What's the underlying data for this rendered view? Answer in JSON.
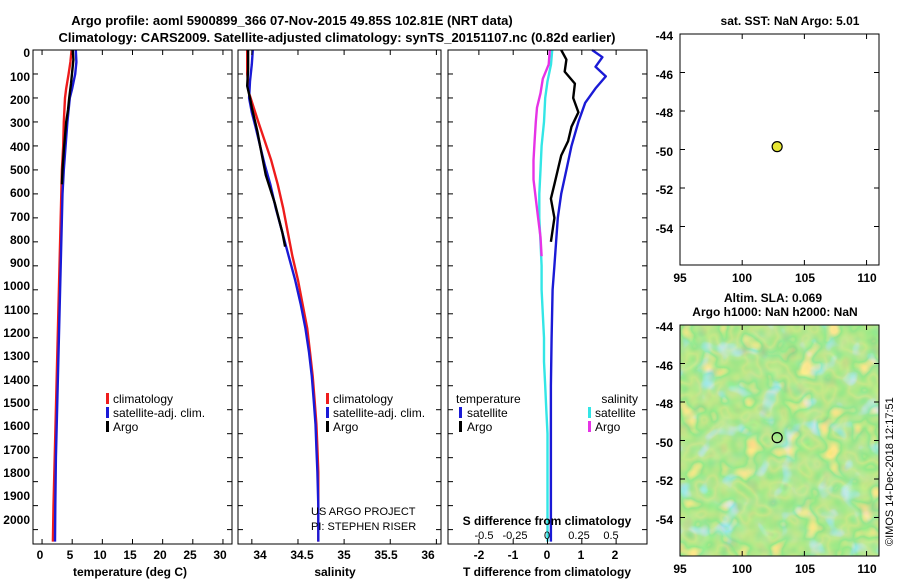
{
  "header": {
    "line1": "Argo profile: aoml 5900899_366 07-Nov-2015 49.85S 102.81E (NRT data)",
    "line2": "Climatology: CARS2009. Satellite-adjusted climatology: synTS_20151107.nc (0.82d earlier)"
  },
  "colors": {
    "climatology": "#ee1c1c",
    "satellite": "#1a1ad6",
    "argo": "#000000",
    "sat_salinity": "#33e6e6",
    "argo_salinity": "#e633e6",
    "marker": "#e6e633"
  },
  "depth_axis": {
    "ticks": [
      "0",
      "100",
      "200",
      "300",
      "400",
      "500",
      "600",
      "700",
      "800",
      "900",
      "1000",
      "1100",
      "1200",
      "1300",
      "1400",
      "1500",
      "1600",
      "1700",
      "1800",
      "1900",
      "2000"
    ]
  },
  "chart_data": [
    {
      "type": "line",
      "id": "temperature",
      "xlabel": "temperature (deg C)",
      "xlim": [
        -1.5,
        31.5
      ],
      "ylim": [
        2060,
        0
      ],
      "xticks": [
        0,
        5,
        10,
        15,
        20,
        25,
        30
      ],
      "xtick_labels": [
        "0",
        "5",
        "10",
        "15",
        "20",
        "25",
        "30"
      ],
      "legend": [
        "climatology",
        "satellite-adj. clim.",
        "Argo"
      ],
      "series": [
        {
          "name": "climatology",
          "color": "#ee1c1c",
          "points": [
            [
              4.9,
              0
            ],
            [
              4.7,
              50
            ],
            [
              4.4,
              100
            ],
            [
              4.0,
              160
            ],
            [
              3.8,
              200
            ],
            [
              3.6,
              300
            ],
            [
              3.5,
              400
            ],
            [
              3.3,
              500
            ],
            [
              3.2,
              600
            ],
            [
              3.1,
              700
            ],
            [
              3.0,
              800
            ],
            [
              2.9,
              900
            ],
            [
              2.8,
              1000
            ],
            [
              2.7,
              1100
            ],
            [
              2.6,
              1200
            ],
            [
              2.5,
              1300
            ],
            [
              2.4,
              1400
            ],
            [
              2.3,
              1500
            ],
            [
              2.2,
              1600
            ],
            [
              2.1,
              1700
            ],
            [
              2.0,
              1800
            ],
            [
              1.9,
              1900
            ],
            [
              1.8,
              2050
            ]
          ]
        },
        {
          "name": "satellite-adj. clim.",
          "color": "#1a1ad6",
          "points": [
            [
              5.6,
              0
            ],
            [
              5.7,
              50
            ],
            [
              5.5,
              100
            ],
            [
              5.0,
              160
            ],
            [
              4.6,
              200
            ],
            [
              4.2,
              300
            ],
            [
              3.9,
              400
            ],
            [
              3.6,
              500
            ],
            [
              3.4,
              600
            ],
            [
              3.3,
              700
            ],
            [
              3.2,
              800
            ],
            [
              3.1,
              900
            ],
            [
              3.0,
              1000
            ],
            [
              2.9,
              1100
            ],
            [
              2.8,
              1200
            ],
            [
              2.7,
              1300
            ],
            [
              2.6,
              1400
            ],
            [
              2.5,
              1500
            ],
            [
              2.4,
              1600
            ],
            [
              2.3,
              1700
            ],
            [
              2.25,
              1800
            ],
            [
              2.2,
              1900
            ],
            [
              2.15,
              2050
            ]
          ]
        },
        {
          "name": "Argo",
          "color": "#000000",
          "points": [
            [
              5.1,
              0
            ],
            [
              5.2,
              40
            ],
            [
              5.0,
              90
            ],
            [
              4.8,
              140
            ],
            [
              4.5,
              200
            ],
            [
              4.3,
              250
            ],
            [
              4.0,
              300
            ],
            [
              3.8,
              360
            ],
            [
              3.6,
              420
            ],
            [
              3.4,
              500
            ],
            [
              3.3,
              560
            ]
          ]
        }
      ]
    },
    {
      "type": "line",
      "id": "salinity",
      "xlabel": "salinity",
      "xlim": [
        33.85,
        36.05
      ],
      "ylim": [
        2060,
        0
      ],
      "xticks": [
        34,
        34.5,
        35,
        35.5,
        36
      ],
      "xtick_labels": [
        "34",
        "34.5",
        "35",
        "35.5",
        "36"
      ],
      "legend": [
        "climatology",
        "satellite-adj. clim.",
        "Argo"
      ],
      "credits": [
        "US ARGO PROJECT",
        "PI: STEPHEN RISER"
      ],
      "series": [
        {
          "name": "climatology",
          "color": "#ee1c1c",
          "points": [
            [
              33.95,
              0
            ],
            [
              33.95,
              100
            ],
            [
              33.97,
              180
            ],
            [
              34.02,
              240
            ],
            [
              34.07,
              300
            ],
            [
              34.14,
              380
            ],
            [
              34.21,
              460
            ],
            [
              34.28,
              560
            ],
            [
              34.34,
              660
            ],
            [
              34.39,
              760
            ],
            [
              34.44,
              860
            ],
            [
              34.5,
              960
            ],
            [
              34.55,
              1060
            ],
            [
              34.6,
              1160
            ],
            [
              34.63,
              1260
            ],
            [
              34.66,
              1360
            ],
            [
              34.68,
              1460
            ],
            [
              34.7,
              1560
            ],
            [
              34.71,
              1660
            ],
            [
              34.72,
              1760
            ],
            [
              34.72,
              1900
            ],
            [
              34.72,
              2050
            ]
          ]
        },
        {
          "name": "satellite-adj. clim.",
          "color": "#1a1ad6",
          "points": [
            [
              34.01,
              0
            ],
            [
              34.0,
              60
            ],
            [
              33.98,
              130
            ],
            [
              33.97,
              200
            ],
            [
              34.0,
              260
            ],
            [
              34.04,
              320
            ],
            [
              34.09,
              400
            ],
            [
              34.14,
              480
            ],
            [
              34.2,
              560
            ],
            [
              34.26,
              660
            ],
            [
              34.33,
              760
            ],
            [
              34.4,
              860
            ],
            [
              34.47,
              960
            ],
            [
              34.53,
              1060
            ],
            [
              34.58,
              1160
            ],
            [
              34.62,
              1260
            ],
            [
              34.65,
              1360
            ],
            [
              34.67,
              1460
            ],
            [
              34.69,
              1560
            ],
            [
              34.7,
              1660
            ],
            [
              34.71,
              1760
            ],
            [
              34.72,
              1900
            ],
            [
              34.72,
              2050
            ]
          ]
        },
        {
          "name": "Argo",
          "color": "#000000",
          "points": [
            [
              33.96,
              0
            ],
            [
              33.96,
              80
            ],
            [
              33.95,
              150
            ],
            [
              33.98,
              200
            ],
            [
              34.0,
              240
            ],
            [
              34.03,
              290
            ],
            [
              34.06,
              340
            ],
            [
              34.09,
              400
            ],
            [
              34.12,
              460
            ],
            [
              34.15,
              520
            ],
            [
              34.2,
              580
            ],
            [
              34.25,
              640
            ],
            [
              34.29,
              700
            ],
            [
              34.33,
              760
            ],
            [
              34.36,
              820
            ]
          ]
        }
      ]
    },
    {
      "type": "line",
      "id": "differences",
      "xlabel": "T difference from climatology",
      "xlabel_top": "S difference from climatology",
      "xlim": [
        -2.9,
        2.9
      ],
      "ylim": [
        2060,
        0
      ],
      "xticks": [
        -2,
        -1,
        0,
        1,
        2
      ],
      "xtick_labels": [
        "-2",
        "-1",
        "0",
        "1",
        "2"
      ],
      "sticks": [
        -0.5,
        -0.25,
        0,
        0.25,
        0.5
      ],
      "stick_labels": [
        "-0.5",
        "-0.25",
        "0",
        "0.25",
        "0.5"
      ],
      "legend_temperature": {
        "title": "temperature",
        "items": [
          "satellite",
          "Argo"
        ]
      },
      "legend_salinity": {
        "title": "salinity",
        "items": [
          "satellite",
          "Argo"
        ]
      },
      "series": [
        {
          "name": "T satellite",
          "color": "#1a1ad6",
          "points": [
            [
              1.3,
              0
            ],
            [
              1.6,
              30
            ],
            [
              1.4,
              70
            ],
            [
              1.7,
              110
            ],
            [
              1.4,
              160
            ],
            [
              1.1,
              220
            ],
            [
              0.9,
              300
            ],
            [
              0.7,
              400
            ],
            [
              0.55,
              500
            ],
            [
              0.4,
              600
            ],
            [
              0.3,
              700
            ],
            [
              0.25,
              800
            ],
            [
              0.2,
              900
            ],
            [
              0.15,
              1000
            ],
            [
              0.12,
              1200
            ],
            [
              0.1,
              1400
            ],
            [
              0.1,
              1600
            ],
            [
              0.1,
              1800
            ],
            [
              0.1,
              2050
            ]
          ]
        },
        {
          "name": "T Argo",
          "color": "#000000",
          "points": [
            [
              0.4,
              0
            ],
            [
              0.55,
              40
            ],
            [
              0.5,
              90
            ],
            [
              0.8,
              140
            ],
            [
              0.75,
              200
            ],
            [
              0.9,
              260
            ],
            [
              0.7,
              320
            ],
            [
              0.6,
              380
            ],
            [
              0.4,
              440
            ],
            [
              0.3,
              500
            ],
            [
              0.2,
              560
            ],
            [
              0.1,
              620
            ],
            [
              0.2,
              700
            ],
            [
              0.1,
              800
            ]
          ]
        },
        {
          "name": "S satellite",
          "color": "#33e6e6",
          "points": [
            [
              0.04,
              0
            ],
            [
              0.03,
              60
            ],
            [
              0.0,
              130
            ],
            [
              -0.02,
              200
            ],
            [
              -0.03,
              300
            ],
            [
              -0.05,
              400
            ],
            [
              -0.06,
              500
            ],
            [
              -0.07,
              600
            ],
            [
              -0.07,
              700
            ],
            [
              -0.06,
              800
            ],
            [
              -0.05,
              900
            ],
            [
              -0.05,
              1000
            ],
            [
              -0.04,
              1100
            ],
            [
              -0.03,
              1200
            ],
            [
              -0.03,
              1300
            ],
            [
              -0.02,
              1400
            ],
            [
              -0.01,
              1500
            ],
            [
              0.0,
              1600
            ],
            [
              0.0,
              1800
            ],
            [
              0.0,
              2050
            ]
          ]
        },
        {
          "name": "S Argo",
          "color": "#e633e6",
          "points": [
            [
              0.02,
              0
            ],
            [
              0.01,
              60
            ],
            [
              -0.04,
              120
            ],
            [
              -0.06,
              180
            ],
            [
              -0.09,
              240
            ],
            [
              -0.1,
              300
            ],
            [
              -0.11,
              380
            ],
            [
              -0.12,
              460
            ],
            [
              -0.12,
              540
            ],
            [
              -0.1,
              620
            ],
            [
              -0.08,
              700
            ],
            [
              -0.06,
              780
            ],
            [
              -0.05,
              860
            ]
          ]
        }
      ]
    },
    {
      "type": "scatter",
      "id": "sst_map",
      "title": "sat. SST: NaN Argo: 5.01",
      "xlim": [
        95,
        111
      ],
      "ylim": [
        -56,
        -44
      ],
      "xticks": [
        95,
        100,
        105,
        110
      ],
      "yticks": [
        -54,
        -52,
        -50,
        -48,
        -46,
        -44
      ],
      "points": [
        [
          102.81,
          -49.85
        ]
      ]
    },
    {
      "type": "heatmap",
      "id": "sla_map",
      "title1": "Altim. SLA: 0.069",
      "title2": "Argo h1000: NaN h2000: NaN",
      "xlim": [
        95,
        111
      ],
      "ylim": [
        -56,
        -44
      ],
      "xticks": [
        95,
        100,
        105,
        110
      ],
      "yticks": [
        -54,
        -52,
        -50,
        -48,
        -46,
        -44
      ],
      "points": [
        [
          102.81,
          -49.85
        ]
      ]
    }
  ],
  "stamp": "©IMOS 14-Dec-2018 12:17:51"
}
